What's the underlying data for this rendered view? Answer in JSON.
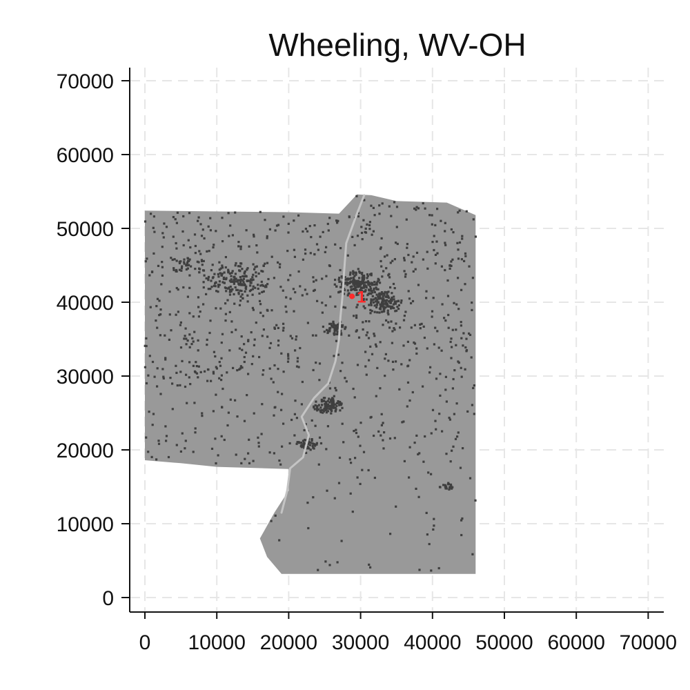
{
  "chart_data": {
    "type": "scatter",
    "title": "Wheeling, WV-OH",
    "xlabel": "",
    "ylabel": "",
    "xlim": [
      -2000,
      72000
    ],
    "ylim": [
      -2000,
      72000
    ],
    "x_ticks": [
      0,
      10000,
      20000,
      30000,
      40000,
      50000,
      60000,
      70000
    ],
    "y_ticks": [
      0,
      10000,
      20000,
      30000,
      40000,
      50000,
      60000,
      70000
    ],
    "grid": true,
    "colors": {
      "region": "#999999",
      "river": "#c4c4c4",
      "density_points": "#3f3f3f",
      "marker": "#ff2a2a",
      "grid": "#e6e6e6"
    },
    "region_outline": [
      [
        0,
        52400
      ],
      [
        20000,
        52200
      ],
      [
        27000,
        52000
      ],
      [
        29500,
        54600
      ],
      [
        31500,
        54500
      ],
      [
        35000,
        53700
      ],
      [
        42000,
        53500
      ],
      [
        46000,
        51800
      ],
      [
        46000,
        3200
      ],
      [
        19000,
        3200
      ],
      [
        17000,
        5500
      ],
      [
        16000,
        8000
      ],
      [
        18000,
        11500
      ],
      [
        20000,
        14500
      ],
      [
        20000,
        17400
      ],
      [
        10000,
        17700
      ],
      [
        5000,
        18200
      ],
      [
        0,
        18600
      ]
    ],
    "river_path": [
      [
        30500,
        54500
      ],
      [
        29500,
        52000
      ],
      [
        28000,
        48000
      ],
      [
        27700,
        44000
      ],
      [
        27500,
        41000
      ],
      [
        27200,
        38000
      ],
      [
        27000,
        35000
      ],
      [
        26500,
        32000
      ],
      [
        25500,
        29000
      ],
      [
        23500,
        27000
      ],
      [
        21800,
        24500
      ],
      [
        22800,
        22000
      ],
      [
        22000,
        19000
      ],
      [
        20200,
        17500
      ],
      [
        19800,
        14500
      ],
      [
        19000,
        11500
      ]
    ],
    "hotspots": [
      {
        "x": 13000,
        "y": 43000,
        "radius": 3500,
        "count": 150
      },
      {
        "x": 29500,
        "y": 42500,
        "radius": 2500,
        "count": 200
      },
      {
        "x": 33000,
        "y": 40000,
        "radius": 2200,
        "count": 130
      },
      {
        "x": 25500,
        "y": 26000,
        "radius": 1600,
        "count": 110
      },
      {
        "x": 26500,
        "y": 36500,
        "radius": 1400,
        "count": 70
      },
      {
        "x": 22500,
        "y": 20800,
        "radius": 1200,
        "count": 50
      },
      {
        "x": 42000,
        "y": 15000,
        "radius": 800,
        "count": 20
      },
      {
        "x": 6000,
        "y": 45000,
        "radius": 2000,
        "count": 40
      }
    ],
    "points": [
      {
        "label": "1",
        "x": 28800,
        "y": 40800
      }
    ]
  }
}
